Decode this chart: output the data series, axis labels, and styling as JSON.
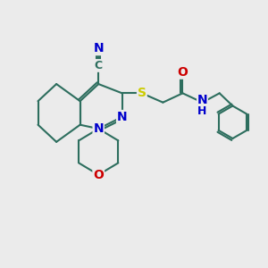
{
  "bg_color": "#ebebeb",
  "bond_color": "#2d6e5e",
  "bond_width": 1.5,
  "atom_colors": {
    "C": "#2d6e5e",
    "N": "#0000cc",
    "O": "#cc0000",
    "S": "#cccc00",
    "H": "#0000cc"
  },
  "figsize": [
    3.0,
    3.0
  ],
  "dpi": 100,
  "xlim": [
    0,
    10
  ],
  "ylim": [
    0,
    10
  ]
}
